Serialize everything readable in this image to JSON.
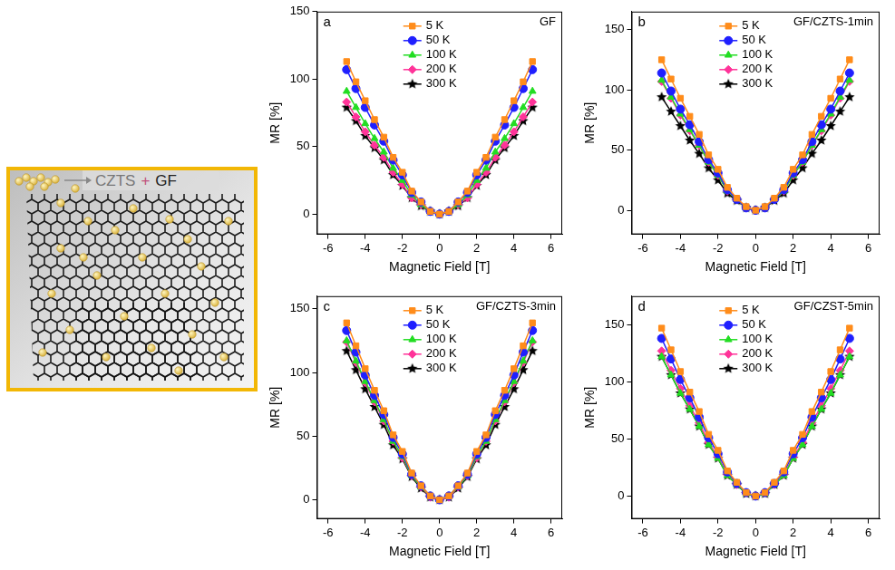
{
  "illustration": {
    "label": "CZTS",
    "operator": "+",
    "partner": "GF"
  },
  "chart_data": [
    {
      "type": "line",
      "panel": "a",
      "title": "GF",
      "x_label": "Magnetic Field [T]",
      "y_label": "MR [%]",
      "x": [
        -5,
        -4.5,
        -4,
        -3.5,
        -3,
        -2.5,
        -2,
        -1.5,
        -1,
        -0.5,
        0,
        0.5,
        1,
        1.5,
        2,
        2.5,
        3,
        3.5,
        4,
        4.5,
        5
      ],
      "series": [
        {
          "name": "5 K",
          "color": "#ff8c1a",
          "marker": "square",
          "values": [
            113,
            98,
            84,
            70,
            57,
            42,
            31,
            17,
            9,
            2,
            0,
            2,
            9,
            17,
            31,
            42,
            57,
            70,
            84,
            98,
            113
          ]
        },
        {
          "name": "50 K",
          "color": "#1f1fff",
          "marker": "circle",
          "values": [
            107,
            93,
            79,
            66,
            54,
            40,
            29,
            16,
            9,
            2,
            0,
            2,
            9,
            16,
            29,
            40,
            54,
            66,
            79,
            93,
            107
          ]
        },
        {
          "name": "100 K",
          "color": "#22dd22",
          "marker": "triangle",
          "values": [
            91,
            79,
            67,
            56,
            46,
            34,
            25,
            14,
            7,
            2,
            0,
            2,
            7,
            14,
            25,
            34,
            46,
            56,
            67,
            79,
            91
          ]
        },
        {
          "name": "200 K",
          "color": "#ff3399",
          "marker": "diamond",
          "values": [
            83,
            72,
            61,
            51,
            42,
            31,
            22,
            12,
            7,
            2,
            0,
            2,
            7,
            12,
            22,
            31,
            42,
            51,
            61,
            72,
            83
          ]
        },
        {
          "name": "300 K",
          "color": "#000000",
          "marker": "star",
          "values": [
            79,
            69,
            58,
            49,
            40,
            29,
            21,
            12,
            6,
            2,
            0,
            2,
            6,
            12,
            21,
            29,
            40,
            49,
            58,
            69,
            79
          ]
        }
      ],
      "xlim": [
        -6.6,
        6.6
      ],
      "xticks": [
        -6,
        -4,
        -2,
        0,
        2,
        4,
        6
      ],
      "ylim": [
        -15,
        150
      ],
      "yticks": [
        0,
        50,
        100,
        150
      ],
      "grid": false,
      "legend": "top"
    },
    {
      "type": "line",
      "panel": "b",
      "title": "GF/CZTS-1min",
      "x_label": "Magnetic Field [T]",
      "y_label": "MR [%]",
      "x": [
        -5,
        -4.5,
        -4,
        -3.5,
        -3,
        -2.5,
        -2,
        -1.5,
        -1,
        -0.5,
        0,
        0.5,
        1,
        1.5,
        2,
        2.5,
        3,
        3.5,
        4,
        4.5,
        5
      ],
      "series": [
        {
          "name": "5 K",
          "color": "#ff8c1a",
          "marker": "square",
          "values": [
            125,
            109,
            93,
            78,
            63,
            46,
            34,
            19,
            10,
            3,
            0,
            3,
            10,
            19,
            34,
            46,
            63,
            78,
            93,
            109,
            125
          ]
        },
        {
          "name": "50 K",
          "color": "#1f1fff",
          "marker": "circle",
          "values": [
            114,
            99,
            84,
            71,
            57,
            42,
            31,
            17,
            9,
            2,
            0,
            2,
            9,
            17,
            31,
            42,
            57,
            71,
            84,
            99,
            114
          ]
        },
        {
          "name": "100 K",
          "color": "#22dd22",
          "marker": "triangle",
          "values": [
            108,
            94,
            80,
            67,
            54,
            40,
            29,
            16,
            9,
            2,
            0,
            2,
            9,
            16,
            29,
            40,
            54,
            67,
            80,
            94,
            108
          ]
        },
        {
          "name": "200 K",
          "color": "#ff3399",
          "marker": "diamond",
          "values": [
            107,
            93,
            79,
            66,
            54,
            40,
            29,
            16,
            9,
            2,
            0,
            2,
            9,
            16,
            29,
            40,
            54,
            66,
            79,
            93,
            107
          ]
        },
        {
          "name": "300 K",
          "color": "#000000",
          "marker": "star",
          "values": [
            94,
            82,
            70,
            58,
            47,
            35,
            25,
            14,
            8,
            2,
            0,
            2,
            8,
            14,
            25,
            35,
            47,
            58,
            70,
            82,
            94
          ]
        }
      ],
      "xlim": [
        -6.6,
        6.6
      ],
      "xticks": [
        -6,
        -4,
        -2,
        0,
        2,
        4,
        6
      ],
      "ylim": [
        -20,
        165
      ],
      "yticks": [
        0,
        50,
        100,
        150
      ],
      "grid": false,
      "legend": "top"
    },
    {
      "type": "line",
      "panel": "c",
      "title": "GF/CZTS-3min",
      "x_label": "Magnetic Field [T]",
      "y_label": "MR [%]",
      "x": [
        -5,
        -4.5,
        -4,
        -3.5,
        -3,
        -2.5,
        -2,
        -1.5,
        -1,
        -0.5,
        0,
        0.5,
        1,
        1.5,
        2,
        2.5,
        3,
        3.5,
        4,
        4.5,
        5
      ],
      "series": [
        {
          "name": "5 K",
          "color": "#ff8c1a",
          "marker": "square",
          "values": [
            139,
            121,
            103,
            86,
            70,
            51,
            38,
            21,
            11,
            3,
            0,
            3,
            11,
            21,
            38,
            51,
            70,
            86,
            103,
            121,
            139
          ]
        },
        {
          "name": "50 K",
          "color": "#1f1fff",
          "marker": "circle",
          "values": [
            133,
            116,
            98,
            82,
            67,
            49,
            36,
            20,
            11,
            3,
            0,
            3,
            11,
            20,
            36,
            49,
            67,
            82,
            98,
            116,
            133
          ]
        },
        {
          "name": "100 K",
          "color": "#22dd22",
          "marker": "triangle",
          "values": [
            125,
            109,
            93,
            78,
            63,
            46,
            34,
            19,
            10,
            3,
            0,
            3,
            10,
            19,
            34,
            46,
            63,
            78,
            93,
            109,
            125
          ]
        },
        {
          "name": "200 K",
          "color": "#ff3399",
          "marker": "diamond",
          "values": [
            124,
            108,
            92,
            77,
            62,
            46,
            33,
            19,
            10,
            2,
            0,
            2,
            10,
            19,
            33,
            46,
            62,
            77,
            92,
            108,
            124
          ]
        },
        {
          "name": "300 K",
          "color": "#000000",
          "marker": "star",
          "values": [
            117,
            102,
            87,
            73,
            59,
            43,
            32,
            18,
            9,
            2,
            0,
            2,
            9,
            18,
            32,
            43,
            59,
            73,
            87,
            102,
            117
          ]
        }
      ],
      "xlim": [
        -6.6,
        6.6
      ],
      "xticks": [
        -6,
        -4,
        -2,
        0,
        2,
        4,
        6
      ],
      "ylim": [
        -15,
        160
      ],
      "yticks": [
        0,
        50,
        100,
        150
      ],
      "grid": false,
      "legend": "top"
    },
    {
      "type": "line",
      "panel": "d",
      "title": "GF/CZST-5min",
      "x_label": "Magnetic Field [T]",
      "y_label": "MR [%]",
      "x": [
        -5,
        -4.5,
        -4,
        -3.5,
        -3,
        -2.5,
        -2,
        -1.5,
        -1,
        -0.5,
        0,
        0.5,
        1,
        1.5,
        2,
        2.5,
        3,
        3.5,
        4,
        4.5,
        5
      ],
      "series": [
        {
          "name": "5 K",
          "color": "#ff8c1a",
          "marker": "square",
          "values": [
            147,
            128,
            109,
            91,
            74,
            54,
            40,
            22,
            12,
            3,
            0,
            3,
            12,
            22,
            40,
            54,
            74,
            91,
            109,
            128,
            147
          ]
        },
        {
          "name": "50 K",
          "color": "#1f1fff",
          "marker": "circle",
          "values": [
            138,
            120,
            102,
            86,
            69,
            51,
            37,
            21,
            11,
            3,
            0,
            3,
            11,
            21,
            37,
            51,
            69,
            86,
            102,
            120,
            138
          ]
        },
        {
          "name": "100 K",
          "color": "#22dd22",
          "marker": "triangle",
          "values": [
            122,
            106,
            90,
            76,
            61,
            45,
            33,
            18,
            10,
            2,
            0,
            2,
            10,
            18,
            33,
            45,
            61,
            76,
            90,
            106,
            122
          ]
        },
        {
          "name": "200 K",
          "color": "#ff3399",
          "marker": "diamond",
          "values": [
            127,
            110,
            94,
            79,
            64,
            47,
            34,
            19,
            10,
            3,
            0,
            3,
            10,
            19,
            34,
            47,
            64,
            79,
            94,
            110,
            127
          ]
        },
        {
          "name": "300 K",
          "color": "#000000",
          "marker": "star",
          "values": [
            122,
            106,
            90,
            76,
            61,
            45,
            33,
            18,
            10,
            2,
            0,
            2,
            10,
            18,
            33,
            45,
            61,
            76,
            90,
            106,
            122
          ]
        }
      ],
      "xlim": [
        -6.6,
        6.6
      ],
      "xticks": [
        -6,
        -4,
        -2,
        0,
        2,
        4,
        6
      ],
      "ylim": [
        -20,
        175
      ],
      "yticks": [
        0,
        50,
        100,
        150
      ],
      "grid": false,
      "legend": "top"
    }
  ]
}
